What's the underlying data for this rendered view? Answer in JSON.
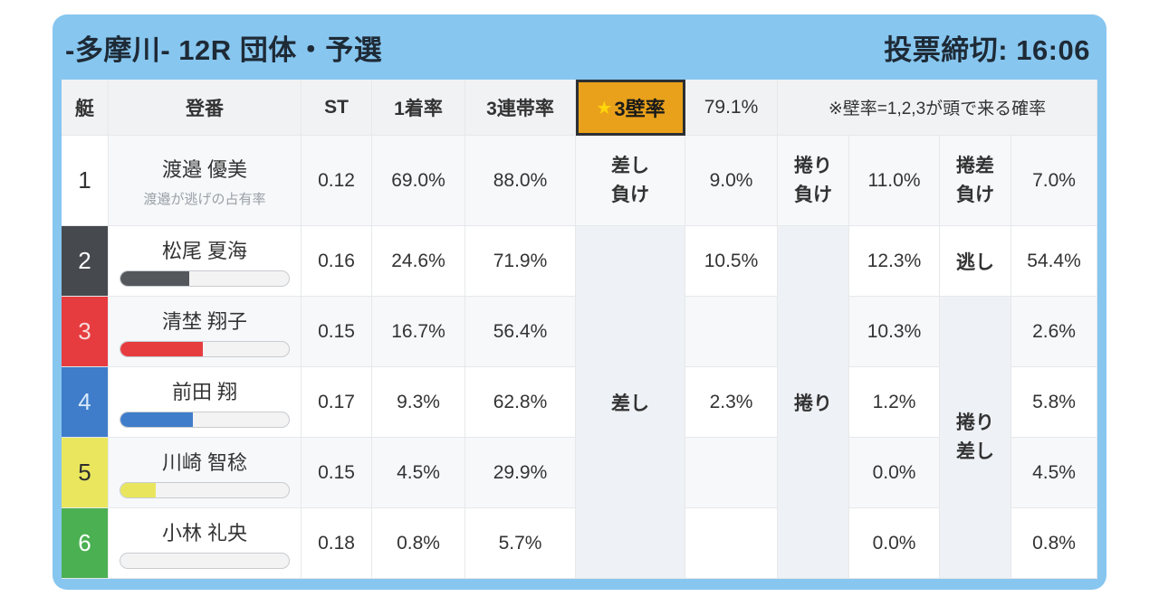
{
  "header": {
    "title": "-多摩川- 12R 団体・予選",
    "deadline": "投票締切: 16:06"
  },
  "colors": {
    "card_blue": "#87c6ef",
    "gold_highlight": "#e9a11b",
    "title_text": "#1e2a36"
  },
  "table": {
    "col_headers": {
      "boat": "艇",
      "racer": "登番",
      "st": "ST",
      "first": "1着率",
      "top3": "3連帯率"
    },
    "wall": {
      "star_icon": "★",
      "label": "3壁率",
      "value": "79.1%",
      "note": "※壁率=1,2,3が頭で来る確率"
    }
  },
  "racers": [
    {
      "boat": "1",
      "name": "渡邉 優美",
      "note": "渡邉が逃げの占有率",
      "st": "0.12",
      "first": "69.0%",
      "top3": "88.0%",
      "boat_bg": "#ffffff",
      "boat_fg": "#333333"
    },
    {
      "boat": "2",
      "name": "松尾 夏海",
      "st": "0.16",
      "first": "24.6%",
      "top3": "71.9%",
      "bar_width": "41%",
      "bar_color": "#54575c",
      "boat_bg": "#46494e",
      "boat_fg": "#ffffff"
    },
    {
      "boat": "3",
      "name": "清埜 翔子",
      "st": "0.15",
      "first": "16.7%",
      "top3": "56.4%",
      "bar_width": "49%",
      "bar_color": "#e63c40",
      "boat_bg": "#e63c40",
      "boat_fg": "#f8d9d9"
    },
    {
      "boat": "4",
      "name": "前田 翔",
      "st": "0.17",
      "first": "9.3%",
      "top3": "62.8%",
      "bar_width": "43%",
      "bar_color": "#3f7dca",
      "boat_bg": "#3f7dca",
      "boat_fg": "#d9e9fb"
    },
    {
      "boat": "5",
      "name": "川崎 智稔",
      "st": "0.15",
      "first": "4.5%",
      "top3": "29.9%",
      "bar_width": "21%",
      "bar_color": "#e9e65e",
      "boat_bg": "#eae75f",
      "boat_fg": "#2e2e2e"
    },
    {
      "boat": "6",
      "name": "小林 礼央",
      "st": "0.18",
      "first": "0.8%",
      "top3": "5.7%",
      "bar_width": "0%",
      "bar_color": "#4bb052",
      "boat_bg": "#4bb052",
      "boat_fg": "#ffffff"
    }
  ],
  "right": {
    "sashi_header": {
      "l1": "差し",
      "l2": "負け"
    },
    "makuri_header": {
      "l1": "捲り",
      "l2": "負け"
    },
    "makusashi_header": {
      "l1": "捲差",
      "l2": "負け"
    },
    "nigashi_label": "逃し",
    "sashi_group": "差し",
    "makuri_group": "捲り",
    "makurisashi_group": {
      "l1": "捲り",
      "l2": "差し"
    },
    "sashi_values": [
      "9.0%",
      "10.5%",
      "",
      "2.3%",
      "",
      ""
    ],
    "makuri_values": [
      "11.0%",
      "12.3%",
      "10.3%",
      "1.2%",
      "0.0%",
      "0.0%"
    ],
    "makusashi_values": [
      "7.0%",
      "54.4%",
      "2.6%",
      "5.8%",
      "4.5%",
      "0.8%"
    ]
  }
}
